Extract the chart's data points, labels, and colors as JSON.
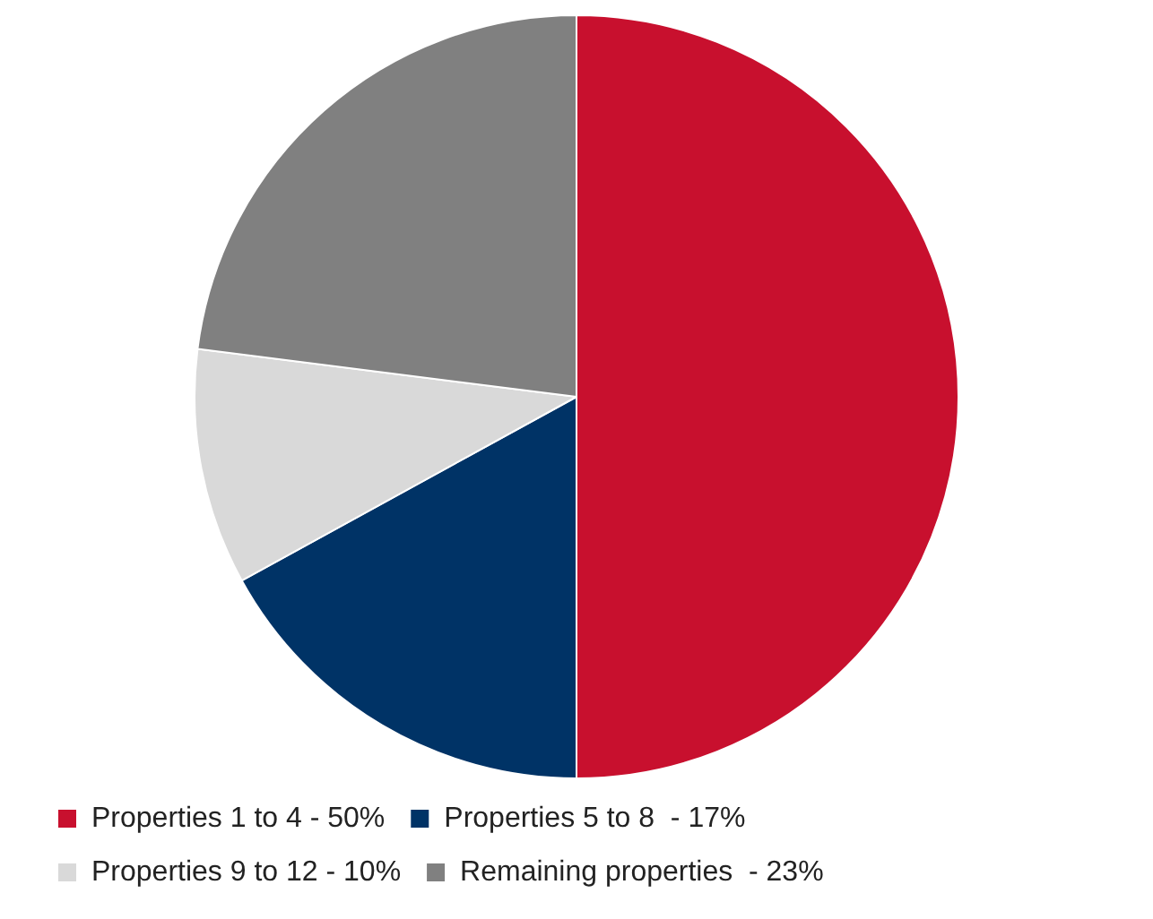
{
  "chart_data": {
    "type": "pie",
    "categories": [
      "Properties 1 to 4 - 50%",
      "Properties 5 to 8  - 17%",
      "Properties 9 to 12 - 10%",
      "Remaining properties  - 23%"
    ],
    "values": [
      50,
      17,
      10,
      23
    ],
    "colors": [
      "#c8102e",
      "#003366",
      "#d9d9d9",
      "#808080"
    ],
    "legend": "bottom"
  }
}
